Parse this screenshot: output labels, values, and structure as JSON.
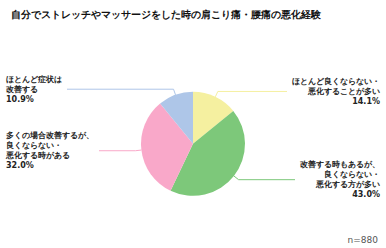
{
  "chart_data": {
    "type": "pie",
    "title": "自分でストレッチやマッサージをした時の肩こり痛・腰痛の悪化経験",
    "categories": [
      "ほとんど良くならない・\n悪化することが多い",
      "改善する時もあるが、\n良くならない・\n悪化する方が多い",
      "多くの場合改善するが、\n良くならない・\n悪化する時がある",
      "ほとんど症状は\n改善する"
    ],
    "values": [
      14.1,
      43.0,
      32.0,
      10.9
    ],
    "value_labels": [
      "14.1%",
      "43.0%",
      "32.0%",
      "10.9%"
    ],
    "colors": [
      "#f5f0a0",
      "#7dc87a",
      "#f9a8c9",
      "#aec6e8"
    ],
    "data_labels": true,
    "annotations": [
      "n=880"
    ]
  }
}
